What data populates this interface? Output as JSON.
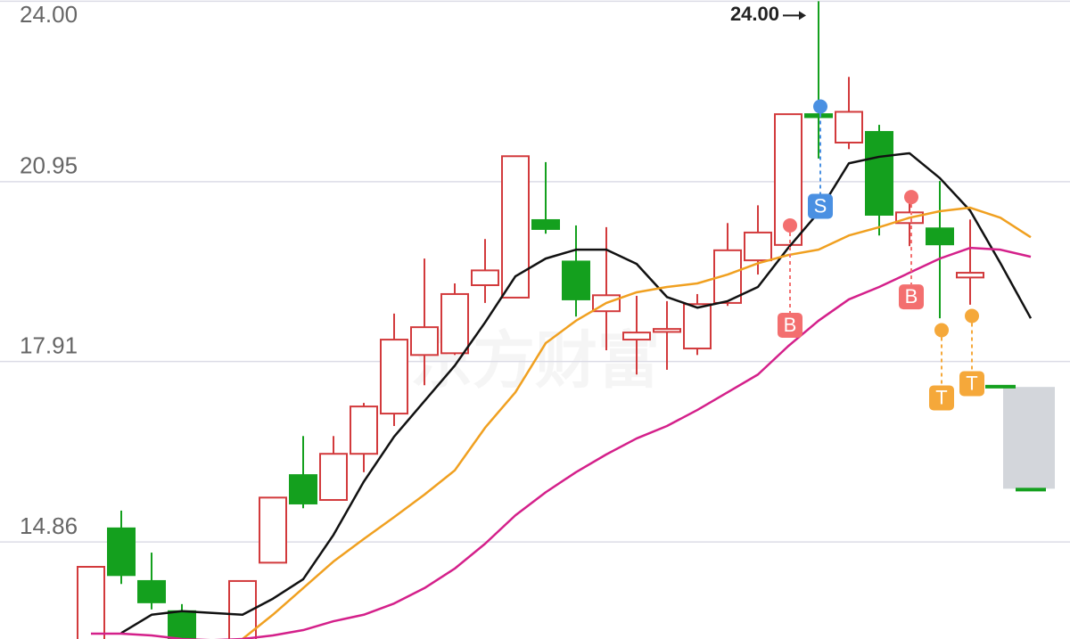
{
  "chart_data": {
    "type": "candlestick",
    "ylim": [
      13.22,
      24.02
    ],
    "yticks": [
      14.86,
      17.91,
      20.95,
      {
        "value": 24,
        "label": "24.00"
      }
    ],
    "grid": true,
    "watermark": "东方财富",
    "max_label": "24.00",
    "up_color": "#d23a3c",
    "down_color": "#14a01e",
    "open": [
      12.87,
      15.09,
      14.2,
      13.69,
      null,
      12.87,
      14.51,
      15.99,
      15.57,
      16.35,
      17.03,
      18.02,
      18.05,
      19.2,
      18.99,
      20.3,
      19.6,
      18.76,
      18.28,
      18.41,
      18.13,
      18.9,
      19.62,
      19.88,
      22.09,
      21.61,
      21.79,
      20.25,
      20.16,
      19.33,
      17.5,
      15.76
    ],
    "high": [
      14.44,
      15.39,
      14.68,
      13.81,
      null,
      14.2,
      15.61,
      16.65,
      16.65,
      17.21,
      18.72,
      19.65,
      19.23,
      19.98,
      21.38,
      21.28,
      20.21,
      20.18,
      19.02,
      18.93,
      19.05,
      20.25,
      20.55,
      22.09,
      24.0,
      22.72,
      21.91,
      20.79,
      20.96,
      20.31,
      17.5,
      15.76
    ],
    "low": [
      12.87,
      14.15,
      13.72,
      12.87,
      null,
      12.87,
      14.51,
      15.43,
      15.57,
      16.04,
      16.82,
      17.51,
      18.02,
      18.9,
      18.99,
      20.07,
      18.67,
      18.1,
      17.69,
      17.77,
      18.02,
      18.85,
      19.38,
      19.88,
      21.34,
      21.5,
      20.04,
      19.86,
      18.64,
      18.87,
      17.48,
      15.75
    ],
    "close": [
      14.44,
      14.3,
      13.84,
      12.87,
      null,
      14.2,
      15.61,
      15.51,
      16.35,
      17.15,
      18.28,
      18.49,
      19.05,
      19.45,
      21.38,
      20.15,
      18.96,
      19.03,
      18.4,
      18.46,
      18.88,
      19.79,
      20.09,
      22.09,
      22.04,
      22.13,
      20.39,
      20.43,
      19.89,
      19.41,
      17.48,
      15.75
    ],
    "series": [
      {
        "color": "#111111",
        "values": [
          null,
          13.32,
          13.63,
          13.69,
          13.66,
          13.63,
          13.9,
          14.23,
          14.98,
          15.88,
          16.64,
          17.24,
          17.84,
          18.57,
          19.35,
          19.65,
          19.8,
          19.8,
          19.56,
          19.0,
          18.82,
          18.93,
          19.17,
          19.83,
          20.43,
          21.26,
          21.37,
          21.43,
          21.01,
          20.46,
          19.57,
          18.64
        ]
      },
      {
        "color": "#f0a020",
        "values": [
          null,
          null,
          null,
          null,
          null,
          13.22,
          13.63,
          14.08,
          14.53,
          14.91,
          15.28,
          15.66,
          16.07,
          16.79,
          17.39,
          18.22,
          18.6,
          18.9,
          19.08,
          19.17,
          19.23,
          19.38,
          19.57,
          19.71,
          19.8,
          20.04,
          20.18,
          20.34,
          20.45,
          20.51,
          20.34,
          20.01
        ]
      },
      {
        "color": "#d4208a",
        "values": [
          13.31,
          13.31,
          13.28,
          13.22,
          13.2,
          13.22,
          13.28,
          13.37,
          13.52,
          13.63,
          13.82,
          14.08,
          14.41,
          14.83,
          15.31,
          15.7,
          16.04,
          16.34,
          16.61,
          16.82,
          17.09,
          17.39,
          17.69,
          18.17,
          18.6,
          18.96,
          19.17,
          19.41,
          19.65,
          19.83,
          19.8,
          19.68
        ]
      }
    ],
    "signals": [
      {
        "index": 23,
        "label": "B",
        "color": "#f36f6f",
        "value": 20.21
      },
      {
        "index": 24,
        "label": "S",
        "color": "#4a90e2",
        "value": 22.22
      },
      {
        "index": 27,
        "label": "B",
        "color": "#f36f6f",
        "value": 20.69
      },
      {
        "index": 28,
        "label": "T",
        "color": "#f5a83a",
        "value": 18.44
      },
      {
        "index": 29,
        "label": "T",
        "color": "#f5a83a",
        "value": 18.68
      }
    ]
  }
}
